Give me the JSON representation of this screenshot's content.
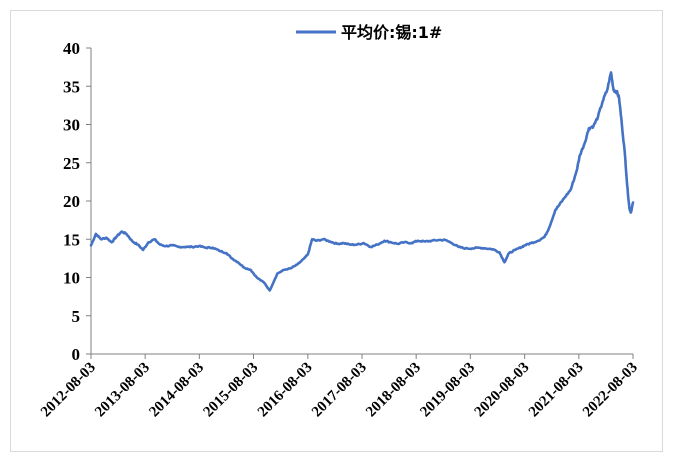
{
  "chart_data": {
    "type": "line",
    "title": "",
    "xlabel": "",
    "ylabel": "",
    "ylim": [
      0,
      40
    ],
    "yticks": [
      "0",
      "5",
      "10",
      "15",
      "20",
      "25",
      "30",
      "35",
      "40"
    ],
    "xlim": [
      "2012-08-03",
      "2022-08-03"
    ],
    "xticks": [
      "2012-08-03",
      "2013-08-03",
      "2014-08-03",
      "2015-08-03",
      "2016-08-03",
      "2017-08-03",
      "2018-08-03",
      "2019-08-03",
      "2020-08-03",
      "2021-08-03",
      "2022-08-03"
    ],
    "grid": false,
    "legend_position": "top-center",
    "color": "#4472C4",
    "series": [
      {
        "name": "平均价:锡:1#",
        "x": [
          "2012-08-03",
          "2012-09-05",
          "2012-10-10",
          "2012-11-15",
          "2012-12-20",
          "2013-01-20",
          "2013-02-25",
          "2013-03-30",
          "2013-05-10",
          "2013-06-15",
          "2013-07-20",
          "2013-08-25",
          "2013-10-05",
          "2013-11-10",
          "2013-12-20",
          "2014-02-01",
          "2014-03-15",
          "2014-05-01",
          "2014-06-15",
          "2014-08-01",
          "2014-09-15",
          "2014-11-01",
          "2014-12-15",
          "2015-02-01",
          "2015-03-10",
          "2015-04-20",
          "2015-06-01",
          "2015-07-15",
          "2015-08-25",
          "2015-10-15",
          "2015-11-20",
          "2016-01-10",
          "2016-02-25",
          "2016-04-10",
          "2016-05-25",
          "2016-07-10",
          "2016-08-03",
          "2016-09-01",
          "2016-10-01",
          "2016-11-15",
          "2017-01-01",
          "2017-02-15",
          "2017-04-01",
          "2017-05-15",
          "2017-07-01",
          "2017-08-15",
          "2017-10-01",
          "2017-11-15",
          "2018-01-01",
          "2018-02-15",
          "2018-04-01",
          "2018-05-15",
          "2018-07-01",
          "2018-08-15",
          "2018-10-01",
          "2018-11-15",
          "2019-01-01",
          "2019-02-15",
          "2019-04-01",
          "2019-05-15",
          "2019-07-01",
          "2019-08-15",
          "2019-10-01",
          "2019-11-15",
          "2020-01-01",
          "2020-02-15",
          "2020-03-20",
          "2020-04-20",
          "2020-06-01",
          "2020-07-15",
          "2020-08-03",
          "2020-09-15",
          "2020-11-01",
          "2020-12-15",
          "2021-01-15",
          "2021-02-25",
          "2021-03-25",
          "2021-05-01",
          "2021-06-10",
          "2021-07-20",
          "2021-08-10",
          "2021-09-10",
          "2021-10-10",
          "2021-11-10",
          "2021-12-10",
          "2022-01-10",
          "2022-02-10",
          "2022-03-08",
          "2022-03-25",
          "2022-04-15",
          "2022-05-01",
          "2022-05-20",
          "2022-06-10",
          "2022-06-25",
          "2022-07-10",
          "2022-07-20",
          "2022-08-03"
        ],
        "y": [
          14.2,
          15.7,
          15.0,
          15.2,
          14.6,
          15.3,
          16.0,
          15.7,
          14.7,
          14.3,
          13.6,
          14.6,
          15.0,
          14.3,
          14.1,
          14.2,
          14.0,
          14.0,
          14.0,
          14.1,
          13.9,
          13.9,
          13.5,
          13.2,
          12.5,
          12.0,
          11.3,
          11.0,
          10.0,
          9.3,
          8.3,
          10.5,
          11.0,
          11.2,
          11.7,
          12.5,
          13.0,
          15.0,
          14.8,
          15.0,
          14.7,
          14.4,
          14.5,
          14.3,
          14.3,
          14.5,
          14.0,
          14.3,
          14.8,
          14.6,
          14.4,
          14.6,
          14.5,
          14.8,
          14.7,
          14.8,
          14.9,
          14.9,
          14.5,
          14.0,
          13.8,
          13.8,
          13.9,
          13.8,
          13.7,
          13.3,
          12.0,
          13.2,
          13.6,
          14.0,
          14.2,
          14.5,
          14.8,
          15.3,
          16.5,
          18.8,
          19.5,
          20.5,
          21.5,
          24.0,
          26.0,
          27.5,
          29.5,
          29.8,
          31.0,
          33.0,
          34.5,
          36.8,
          34.5,
          34.3,
          33.5,
          30.0,
          26.0,
          22.0,
          19.0,
          18.5,
          19.8
        ]
      }
    ]
  }
}
